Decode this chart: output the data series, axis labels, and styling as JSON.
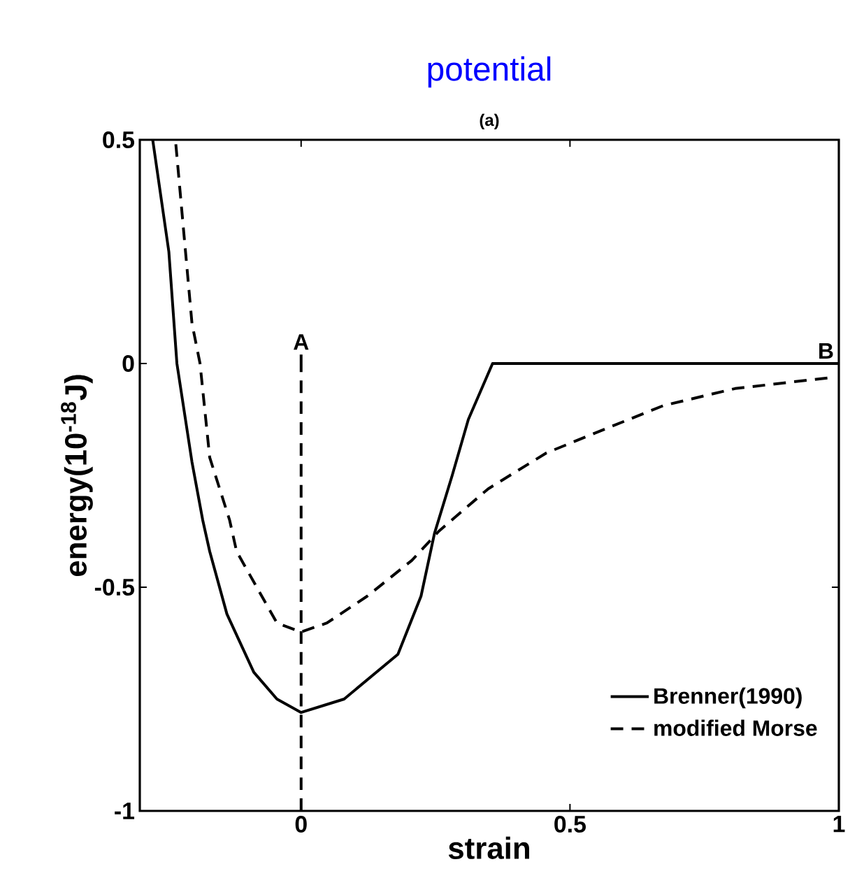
{
  "chart_data": {
    "type": "line",
    "title": "potential",
    "subtitle": "(a)",
    "xlabel": "strain",
    "ylabel": "energy(10$^{-18}$J)",
    "xlim": [
      -0.3,
      1
    ],
    "ylim": [
      -1,
      0.5
    ],
    "xticks": [
      0,
      0.5,
      1
    ],
    "yticks": [
      -1,
      -0.5,
      0,
      0.5
    ],
    "series": [
      {
        "name": "Brenner(1990)",
        "color": "#000000",
        "line_style": "solid",
        "x": [
          -0.276,
          -0.246,
          -0.231,
          -0.203,
          -0.183,
          -0.17,
          -0.138,
          -0.088,
          -0.045,
          0,
          0.08,
          0.18,
          0.223,
          0.248,
          0.281,
          0.311,
          0.356,
          1
        ],
        "values": [
          0.5,
          0.25,
          0,
          -0.22,
          -0.35,
          -0.42,
          -0.56,
          -0.69,
          -0.75,
          -0.78,
          -0.75,
          -0.65,
          -0.52,
          -0.38,
          -0.25,
          -0.125,
          0,
          0
        ]
      },
      {
        "name": "modified Morse",
        "color": "#000000",
        "line_style": "dashed",
        "x": [
          -0.233,
          -0.203,
          -0.188,
          -0.17,
          -0.133,
          -0.12,
          -0.045,
          0,
          0.048,
          0.123,
          0.206,
          0.256,
          0.348,
          0.456,
          0.564,
          0.674,
          0.807,
          0.915,
          0.99
        ],
        "values": [
          0.49,
          0.09,
          0,
          -0.21,
          -0.35,
          -0.42,
          -0.58,
          -0.6,
          -0.58,
          -0.52,
          -0.44,
          -0.375,
          -0.28,
          -0.2,
          -0.147,
          -0.094,
          -0.056,
          -0.041,
          -0.031
        ]
      }
    ],
    "ref_lines": [
      {
        "axis": "x",
        "value": 0,
        "label": "A",
        "line_style": "dashed",
        "color": "#000000"
      }
    ],
    "annotations": [
      {
        "text": "B",
        "x": 1,
        "y": 0
      }
    ],
    "legend": "bottom right",
    "marker": "none",
    "grid": false
  }
}
